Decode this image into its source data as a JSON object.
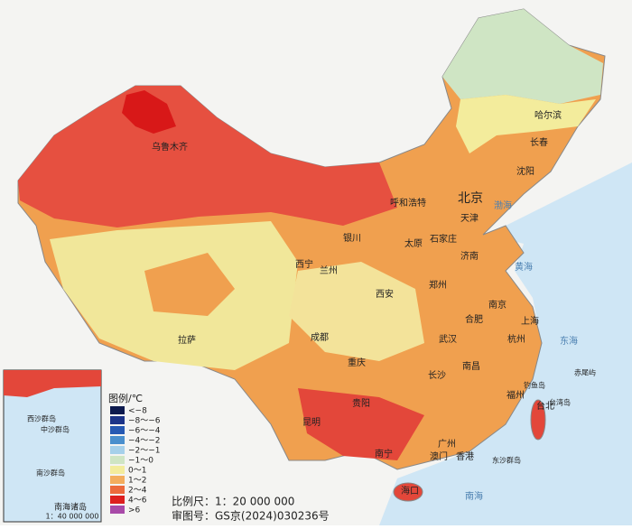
{
  "legend": {
    "title": "图例/℃",
    "items": [
      {
        "label": "<−8",
        "color": "#0d1a4e"
      },
      {
        "label": "−8～−6",
        "color": "#1c3488"
      },
      {
        "label": "−6～−4",
        "color": "#2659b2"
      },
      {
        "label": "−4～−2",
        "color": "#4a8fcd"
      },
      {
        "label": "−2～−1",
        "color": "#a6d0ea"
      },
      {
        "label": "−1～0",
        "color": "#cfe5c4"
      },
      {
        "label": "0～1",
        "color": "#f3ec9c"
      },
      {
        "label": "1～2",
        "color": "#f3ad5e"
      },
      {
        "label": "2～4",
        "color": "#ec6a3c"
      },
      {
        "label": "4～6",
        "color": "#dd1f1f"
      },
      {
        "label": ">6",
        "color": "#a84aa8"
      }
    ]
  },
  "cities": [
    "北京",
    "天津",
    "哈尔滨",
    "长春",
    "沈阳",
    "呼和浩特",
    "石家庄",
    "太原",
    "济南",
    "银川",
    "西宁",
    "兰州",
    "郑州",
    "西安",
    "南京",
    "合肥",
    "上海",
    "杭州",
    "武汉",
    "成都",
    "重庆",
    "南昌",
    "长沙",
    "拉萨",
    "福州",
    "台北",
    "贵阳",
    "昆明",
    "南宁",
    "广州",
    "澳门",
    "香港",
    "海口",
    "乌鲁木齐"
  ],
  "seas": [
    "渤海",
    "黄海",
    "东海",
    "南海"
  ],
  "islands": [
    "台湾岛",
    "东沙群岛",
    "钓鱼岛",
    "赤尾屿",
    "西沙群岛",
    "中沙群岛",
    "南沙群岛"
  ],
  "inset": {
    "caption": "南海诸岛",
    "scale": "1：40 000 000"
  },
  "scale": "比例尺：1：20 000 000",
  "approval": "审图号：GS京(2024)030236号"
}
